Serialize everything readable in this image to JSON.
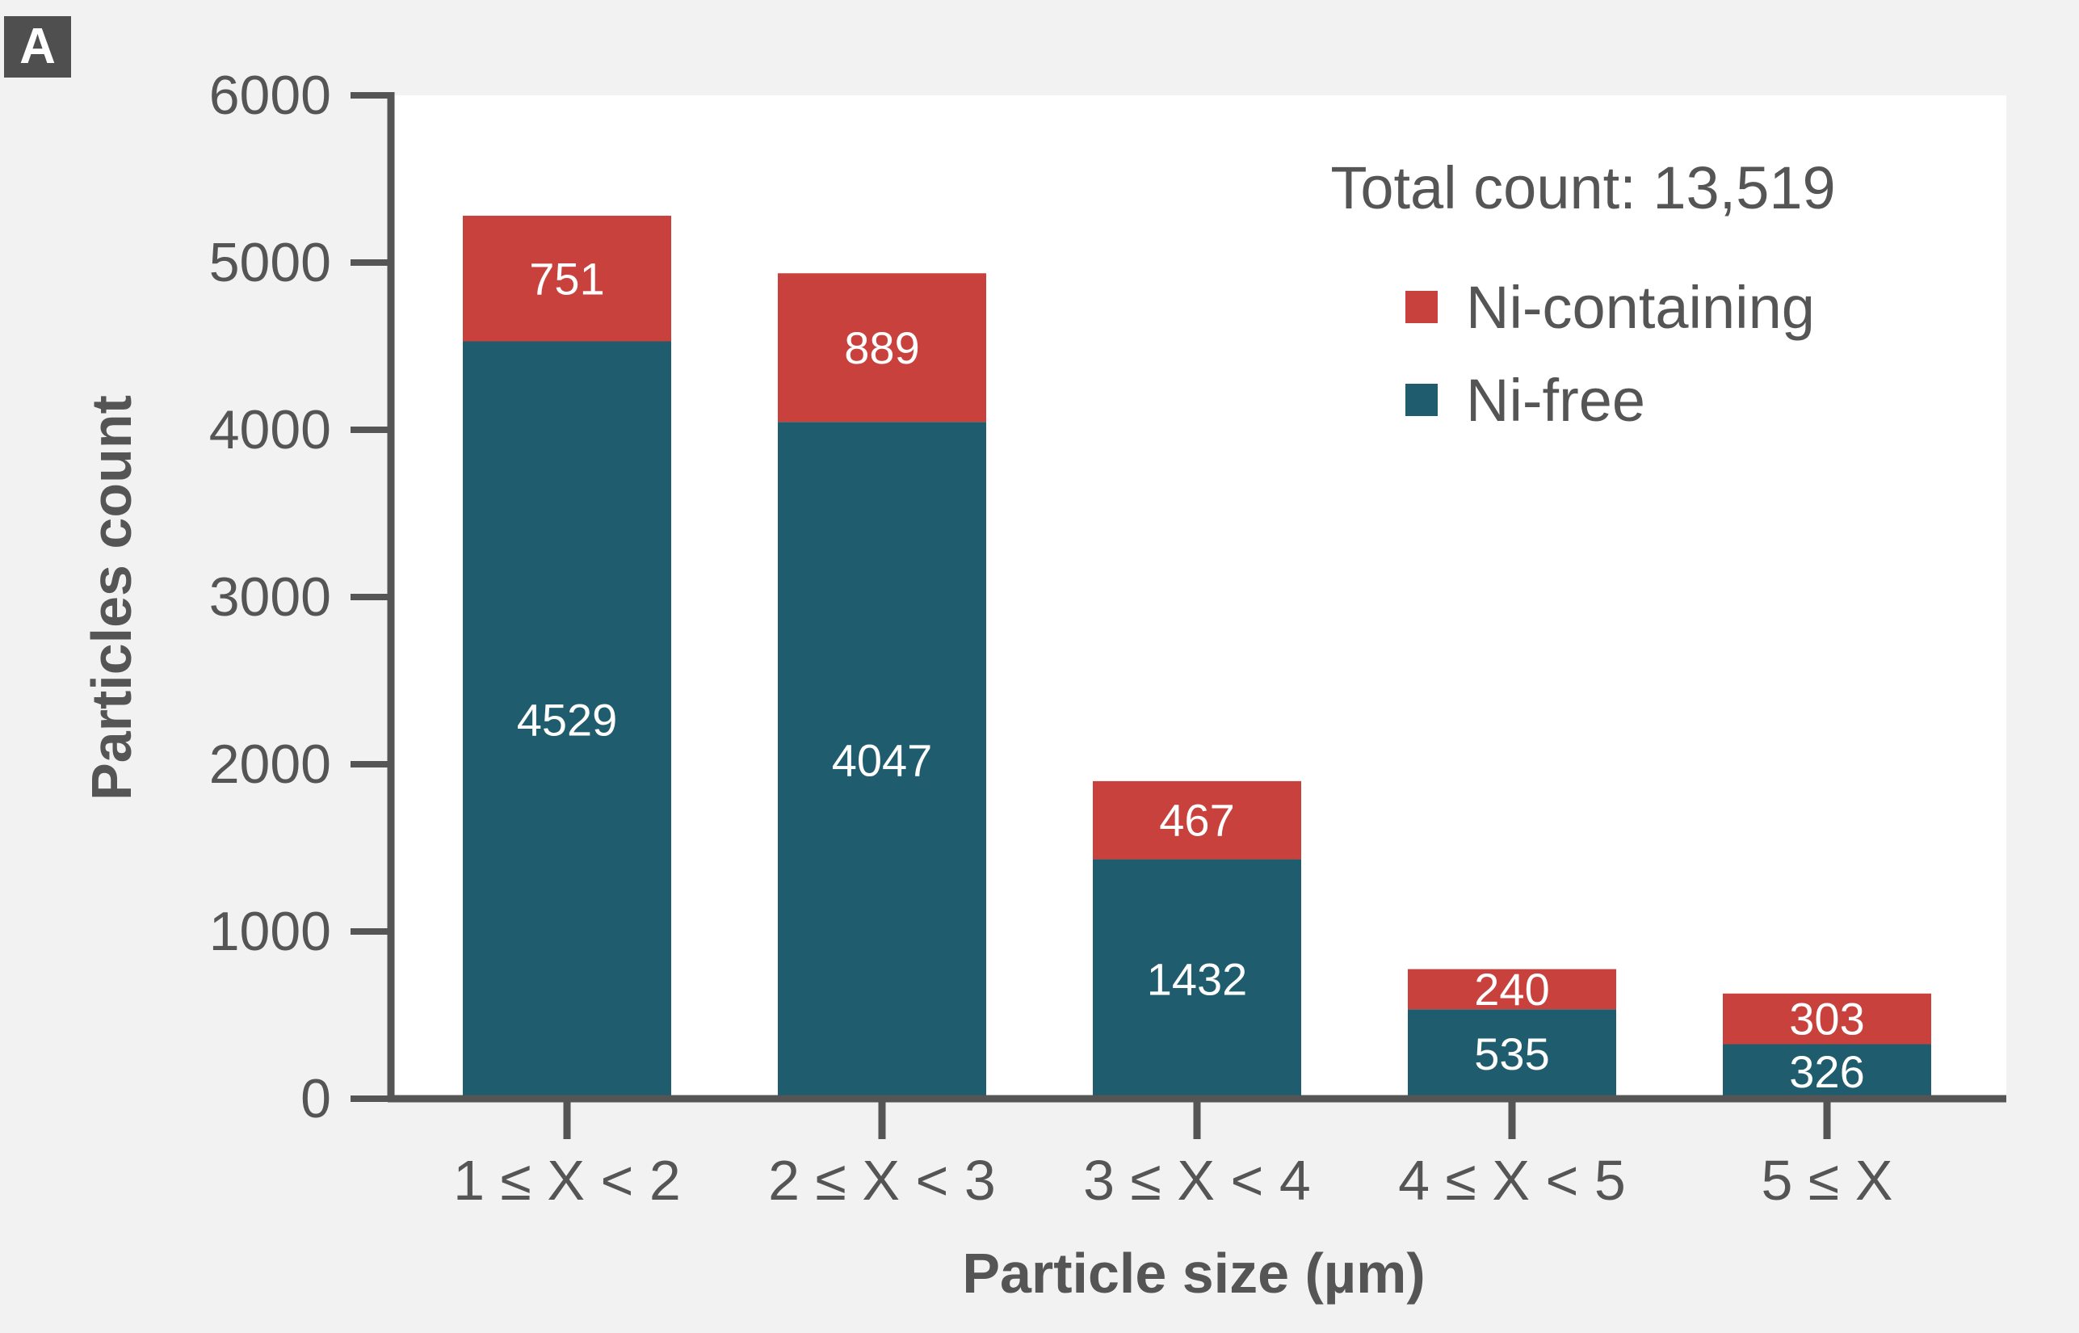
{
  "panel_label": "A",
  "colors": {
    "ni_containing": "#c9413d",
    "ni_free": "#1f5c6d",
    "axis": "#555555",
    "plot_bg": "#ffffff",
    "figure_bg": "#f2f2f2"
  },
  "chart_data": {
    "type": "bar",
    "stacked": true,
    "title": "",
    "xlabel": "Particle size (µm)",
    "ylabel": "Particles count",
    "ylim": [
      0,
      6000
    ],
    "yticks": [
      "0",
      "1000",
      "2000",
      "3000",
      "4000",
      "5000",
      "6000"
    ],
    "categories": [
      "1 ≤ X < 2",
      "2 ≤ X < 3",
      "3 ≤ X < 4",
      "4 ≤ X < 5",
      "5 ≤ X"
    ],
    "series": [
      {
        "name": "Ni-free",
        "color": "#1f5c6d",
        "values": [
          4529,
          4047,
          1432,
          535,
          326
        ],
        "labels": [
          "4529",
          "4047",
          "1432",
          "535",
          "326"
        ]
      },
      {
        "name": "Ni-containing",
        "color": "#c9413d",
        "values": [
          751,
          889,
          467,
          240,
          303
        ],
        "labels": [
          "751",
          "889",
          "467",
          "240",
          "303"
        ]
      }
    ],
    "annotation": "Total count: 13,519",
    "legend": {
      "position": "top-right",
      "entries": [
        "Ni-containing",
        "Ni-free"
      ]
    },
    "grid": false
  }
}
